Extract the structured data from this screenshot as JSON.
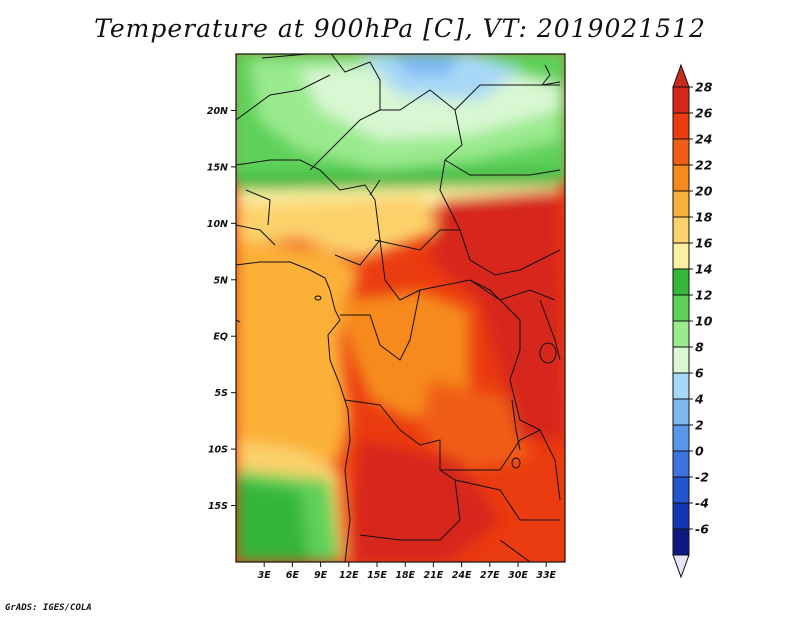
{
  "title": "Temperature at 900hPa [C], VT: 2019021512",
  "credit": "GrADS: IGES/COLA",
  "map": {
    "lon_range": [
      0,
      35
    ],
    "lat_range": [
      -20,
      25
    ],
    "lon_ticks": [
      "3E",
      "6E",
      "9E",
      "12E",
      "15E",
      "18E",
      "21E",
      "24E",
      "27E",
      "30E",
      "33E"
    ],
    "lon_tick_values": [
      3,
      6,
      9,
      12,
      15,
      18,
      21,
      24,
      27,
      30,
      33
    ],
    "lat_ticks": [
      "20N",
      "15N",
      "10N",
      "5N",
      "EQ",
      "5S",
      "10S",
      "15S"
    ],
    "lat_tick_values": [
      20,
      15,
      10,
      5,
      0,
      -5,
      -10,
      -15
    ]
  },
  "colorbar": {
    "levels": [
      "28",
      "26",
      "24",
      "22",
      "20",
      "18",
      "16",
      "14",
      "12",
      "10",
      "8",
      "6",
      "4",
      "2",
      "0",
      "-2",
      "-4",
      "-6"
    ],
    "colors": [
      "#d7261b",
      "#eb3b10",
      "#f05d14",
      "#f68a1c",
      "#fbb039",
      "#fcd16a",
      "#fbf0a2",
      "#36b63a",
      "#5fd15a",
      "#9aea8e",
      "#d8f7d2",
      "#a8d8f7",
      "#7db7f2",
      "#5997ea",
      "#3b74df",
      "#2255cf",
      "#1236b4",
      "#0d1a82",
      "#081060"
    ],
    "over_color": "#c82b1a",
    "under_color": "#e6e4f7"
  }
}
